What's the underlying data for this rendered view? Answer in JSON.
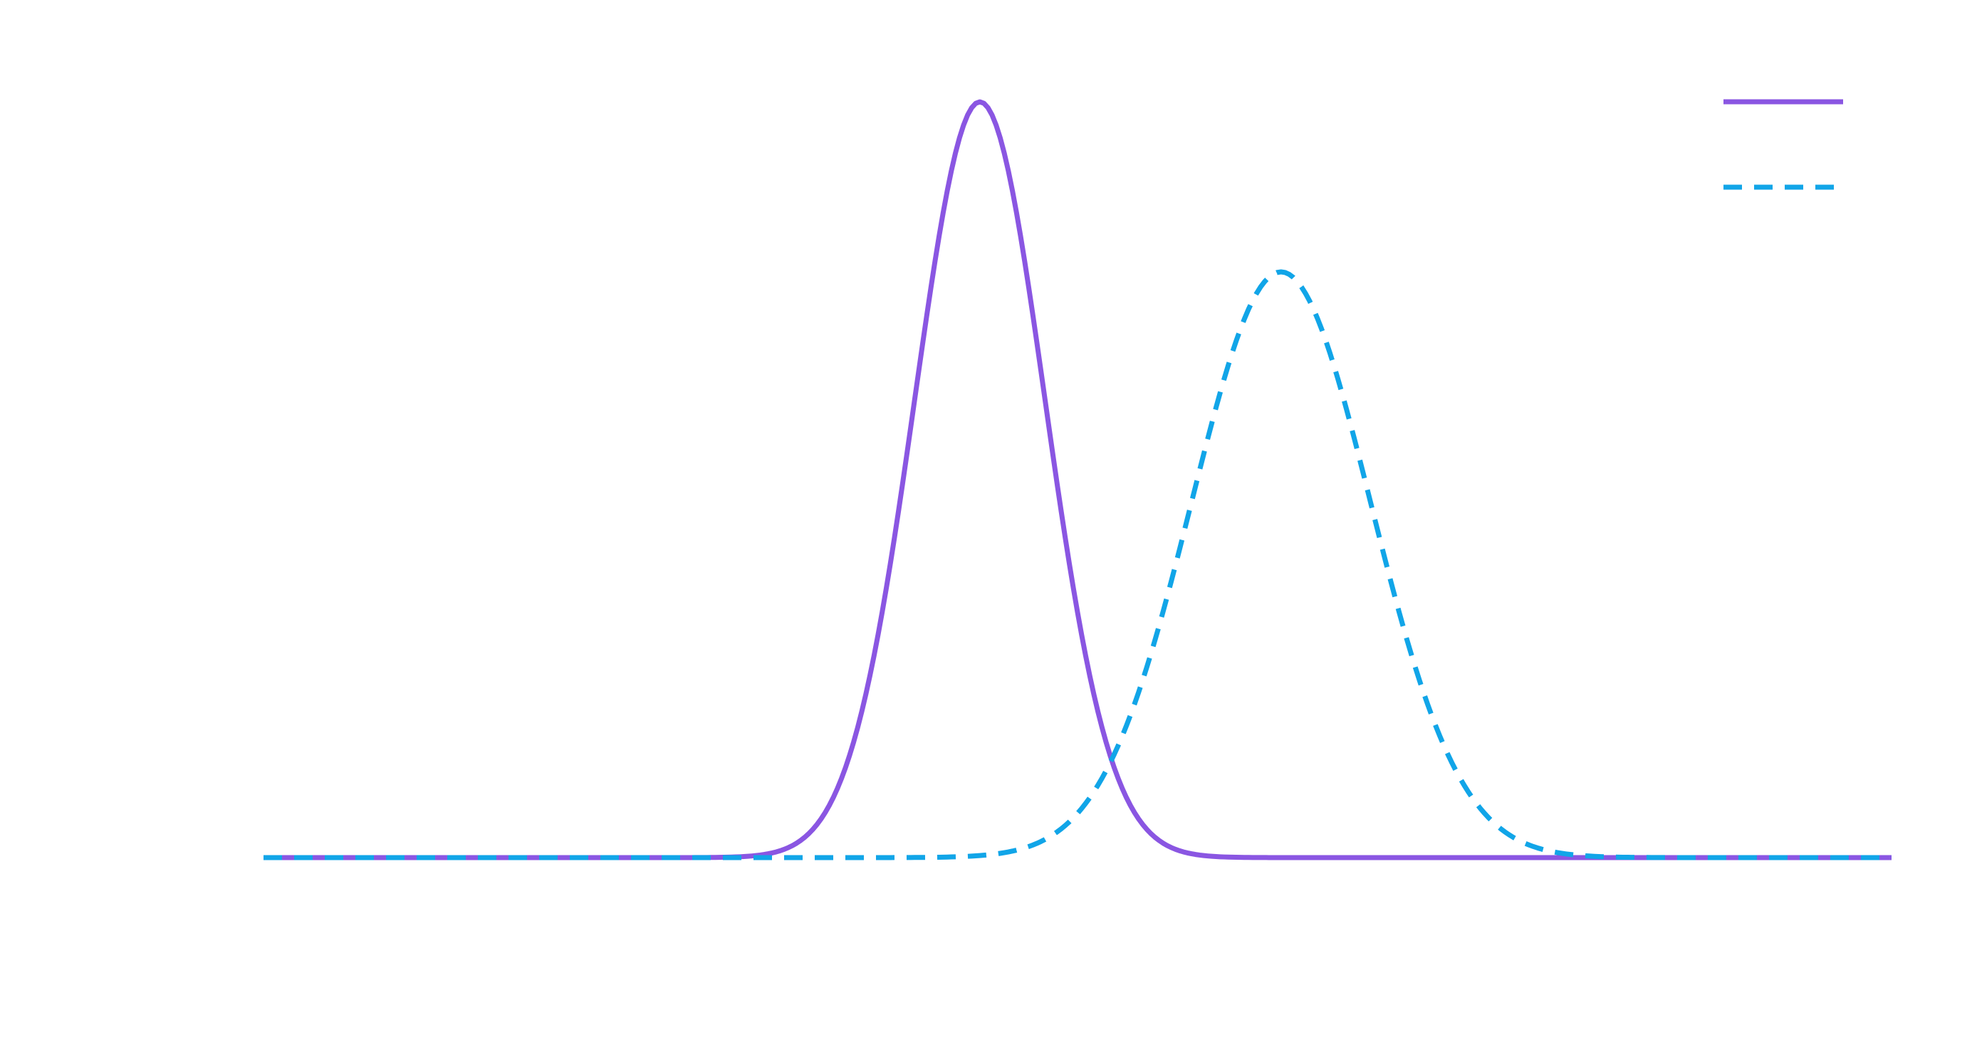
{
  "chart_data": {
    "type": "line",
    "title": "",
    "xlabel": "",
    "ylabel": "",
    "grid": false,
    "legend": {
      "placement": "top-right"
    },
    "xlim": [
      -3,
      7
    ],
    "ylim": [
      0,
      1.05
    ],
    "series": [
      {
        "curve": "gaussian",
        "mean": 1.4,
        "sd": 0.4,
        "peak": 1.0,
        "color": "#8a56e2",
        "line_style": "solid"
      },
      {
        "curve": "gaussian",
        "mean": 3.25,
        "sd": 0.55,
        "peak": 0.775,
        "color": "#11a5e8",
        "line_style": "dashed"
      }
    ]
  }
}
